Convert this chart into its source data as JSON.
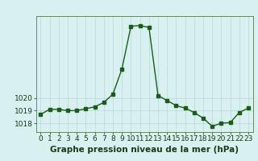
{
  "hours": [
    0,
    1,
    2,
    3,
    4,
    5,
    6,
    7,
    8,
    9,
    10,
    11,
    12,
    13,
    14,
    15,
    16,
    17,
    18,
    19,
    20,
    21,
    22,
    23
  ],
  "pressure": [
    1018.7,
    1019.1,
    1019.1,
    1019.0,
    1019.0,
    1019.15,
    1019.3,
    1019.65,
    1020.3,
    1022.3,
    1025.7,
    1025.75,
    1025.6,
    1020.2,
    1019.8,
    1019.4,
    1019.2,
    1018.85,
    1018.4,
    1017.75,
    1018.0,
    1018.05,
    1018.85,
    1019.2
  ],
  "line_color": "#1a5c1a",
  "marker": "s",
  "marker_size": 2.5,
  "bg_color": "#d8f0f0",
  "grid_color": "#b8d8d8",
  "xlabel": "Graphe pression niveau de la mer (hPa)",
  "xlabel_fontsize": 7.5,
  "yticks": [
    1018,
    1019,
    1020
  ],
  "ylim": [
    1017.3,
    1026.5
  ],
  "xlim": [
    -0.5,
    23.5
  ],
  "tick_fontsize": 6.5,
  "axis_label_color": "#1a3a1a",
  "linewidth": 1.0
}
